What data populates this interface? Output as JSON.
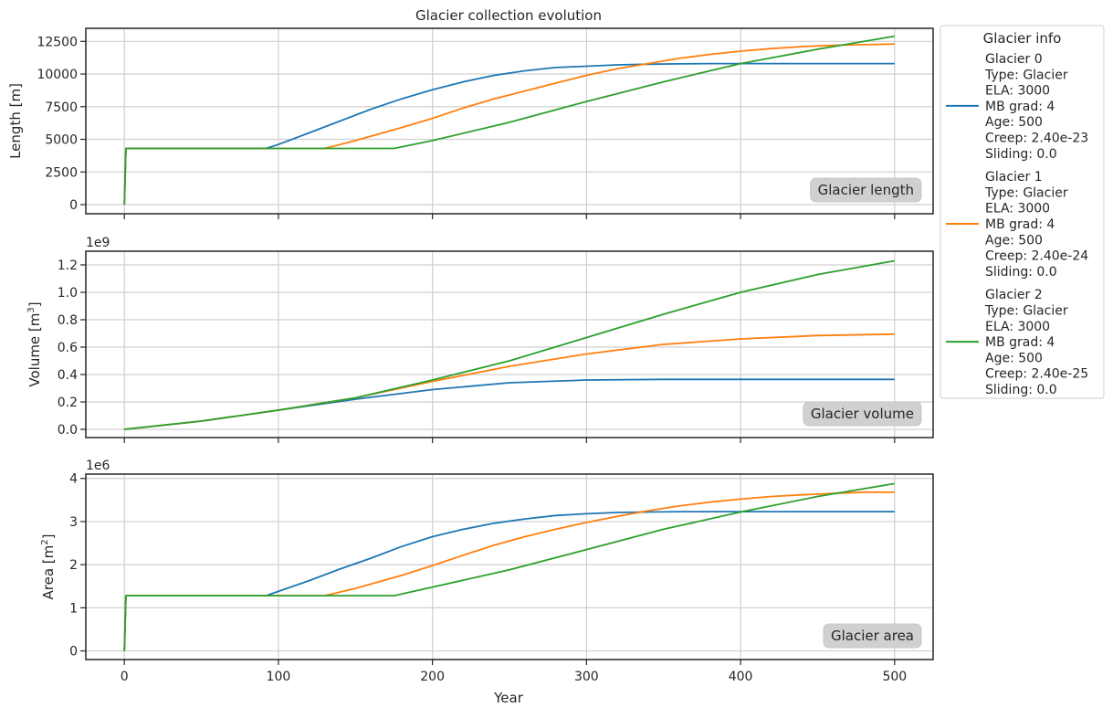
{
  "chart_data": {
    "type": "line",
    "title": "Glacier collection evolution",
    "xlabel": "Year",
    "xlim": [
      -25,
      525
    ],
    "xticks": [
      0,
      100,
      200,
      300,
      400,
      500
    ],
    "series_colors": [
      "#1f77b4",
      "#ff7f0e",
      "#2ca02c"
    ],
    "grid": true,
    "legend": {
      "title": "Glacier info",
      "placement": "outside right",
      "entries": [
        {
          "lines": [
            "Glacier 0",
            "Type: Glacier",
            "ELA: 3000",
            "MB grad: 4",
            "Age: 500",
            "Creep: 2.40e-23",
            "Sliding: 0.0"
          ]
        },
        {
          "lines": [
            "Glacier 1",
            "Type: Glacier",
            "ELA: 3000",
            "MB grad: 4",
            "Age: 500",
            "Creep: 2.40e-24",
            "Sliding: 0.0"
          ]
        },
        {
          "lines": [
            "Glacier 2",
            "Type: Glacier",
            "ELA: 3000",
            "MB grad: 4",
            "Age: 500",
            "Creep: 2.40e-25",
            "Sliding: 0.0"
          ]
        }
      ]
    },
    "panels": [
      {
        "name": "length",
        "ylabel": "Length [m]",
        "ylabel_sup": "",
        "offset_text": "",
        "annotation": "Glacier length",
        "ylim": [
          -700,
          13500
        ],
        "yticks": [
          0,
          2500,
          5000,
          7500,
          10000,
          12500
        ],
        "ytick_labels": [
          "0",
          "2500",
          "5000",
          "7500",
          "10000",
          "12500"
        ],
        "series": [
          {
            "x": [
              0,
              1,
              92,
              100,
              120,
              140,
              160,
              180,
              200,
              220,
              240,
              260,
              280,
              300,
              320,
              340,
              360,
              380,
              400,
              500
            ],
            "y": [
              0,
              4300,
              4300,
              4600,
              5500,
              6400,
              7300,
              8100,
              8800,
              9400,
              9900,
              10250,
              10500,
              10600,
              10700,
              10750,
              10780,
              10800,
              10800,
              10800
            ]
          },
          {
            "x": [
              0,
              1,
              130,
              150,
              180,
              200,
              220,
              240,
              260,
              280,
              300,
              320,
              340,
              360,
              380,
              400,
              420,
              440,
              460,
              480,
              500
            ],
            "y": [
              0,
              4300,
              4300,
              4900,
              5900,
              6600,
              7400,
              8100,
              8700,
              9300,
              9900,
              10400,
              10800,
              11200,
              11500,
              11750,
              11950,
              12100,
              12200,
              12250,
              12300
            ]
          },
          {
            "x": [
              0,
              1,
              175,
              200,
              250,
              300,
              350,
              400,
              450,
              500
            ],
            "y": [
              0,
              4300,
              4300,
              4900,
              6300,
              7900,
              9400,
              10800,
              11900,
              12900
            ]
          }
        ]
      },
      {
        "name": "volume",
        "ylabel": "Volume [m",
        "ylabel_sup": "3",
        "ylabel_tail": "]",
        "offset_text": "1e9",
        "annotation": "Glacier volume",
        "ylim": [
          -0.06,
          1.3
        ],
        "yticks": [
          0,
          0.2,
          0.4,
          0.6,
          0.8,
          1.0,
          1.2
        ],
        "ytick_labels": [
          "0.0",
          "0.2",
          "0.4",
          "0.6",
          "0.8",
          "1.0",
          "1.2"
        ],
        "series": [
          {
            "x": [
              0,
              50,
              100,
              150,
              200,
              250,
              300,
              350,
              400,
              450,
              500
            ],
            "y": [
              0,
              0.06,
              0.14,
              0.22,
              0.29,
              0.34,
              0.36,
              0.365,
              0.365,
              0.365,
              0.365
            ]
          },
          {
            "x": [
              0,
              50,
              100,
              150,
              200,
              250,
              300,
              350,
              400,
              450,
              500
            ],
            "y": [
              0,
              0.06,
              0.14,
              0.23,
              0.35,
              0.46,
              0.55,
              0.62,
              0.66,
              0.685,
              0.695
            ]
          },
          {
            "x": [
              0,
              50,
              100,
              150,
              200,
              250,
              300,
              350,
              400,
              450,
              500
            ],
            "y": [
              0,
              0.06,
              0.14,
              0.23,
              0.36,
              0.5,
              0.67,
              0.84,
              1.0,
              1.13,
              1.23
            ]
          }
        ]
      },
      {
        "name": "area",
        "ylabel": "Area [m",
        "ylabel_sup": "2",
        "ylabel_tail": "]",
        "offset_text": "1e6",
        "annotation": "Glacier area",
        "ylim": [
          -0.2,
          4.1
        ],
        "yticks": [
          0,
          1,
          2,
          3,
          4
        ],
        "ytick_labels": [
          "0",
          "1",
          "2",
          "3",
          "4"
        ],
        "series": [
          {
            "x": [
              0,
              1,
              92,
              100,
              120,
              140,
              160,
              180,
              200,
              220,
              240,
              260,
              280,
              300,
              320,
              340,
              360,
              380,
              400,
              500
            ],
            "y": [
              0,
              1.28,
              1.28,
              1.38,
              1.63,
              1.9,
              2.15,
              2.42,
              2.65,
              2.82,
              2.96,
              3.06,
              3.14,
              3.18,
              3.21,
              3.22,
              3.23,
              3.23,
              3.23,
              3.23
            ]
          },
          {
            "x": [
              0,
              1,
              130,
              150,
              180,
              200,
              220,
              240,
              260,
              280,
              300,
              320,
              340,
              360,
              380,
              400,
              420,
              440,
              460,
              480,
              500
            ],
            "y": [
              0,
              1.28,
              1.28,
              1.45,
              1.75,
              1.98,
              2.22,
              2.45,
              2.65,
              2.82,
              2.98,
              3.12,
              3.25,
              3.36,
              3.45,
              3.52,
              3.58,
              3.62,
              3.65,
              3.68,
              3.68
            ]
          },
          {
            "x": [
              0,
              1,
              175,
              200,
              250,
              300,
              350,
              400,
              450,
              500
            ],
            "y": [
              0,
              1.28,
              1.28,
              1.48,
              1.88,
              2.35,
              2.82,
              3.22,
              3.58,
              3.88
            ]
          }
        ]
      }
    ]
  }
}
